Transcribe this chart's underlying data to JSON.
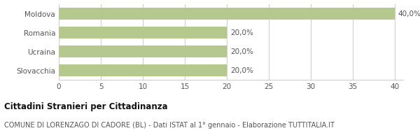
{
  "categories": [
    "Moldova",
    "Romania",
    "Ucraina",
    "Slovacchia"
  ],
  "values": [
    40.0,
    20.0,
    20.0,
    20.0
  ],
  "labels": [
    "40,0%",
    "20,0%",
    "20,0%",
    "20,0%"
  ],
  "bar_color": "#b5c98e",
  "xlim": [
    0,
    41
  ],
  "xticks": [
    0,
    5,
    10,
    15,
    20,
    25,
    30,
    35,
    40
  ],
  "title": "Cittadini Stranieri per Cittadinanza",
  "subtitle": "COMUNE DI LORENZAGO DI CADORE (BL) - Dati ISTAT al 1° gennaio - Elaborazione TUTTITALIA.IT",
  "title_fontsize": 8.5,
  "subtitle_fontsize": 7.0,
  "label_fontsize": 7.5,
  "ytick_fontsize": 7.5,
  "xtick_fontsize": 7.5,
  "background_color": "#ffffff",
  "grid_color": "#cccccc",
  "text_color": "#555555",
  "title_color": "#111111"
}
